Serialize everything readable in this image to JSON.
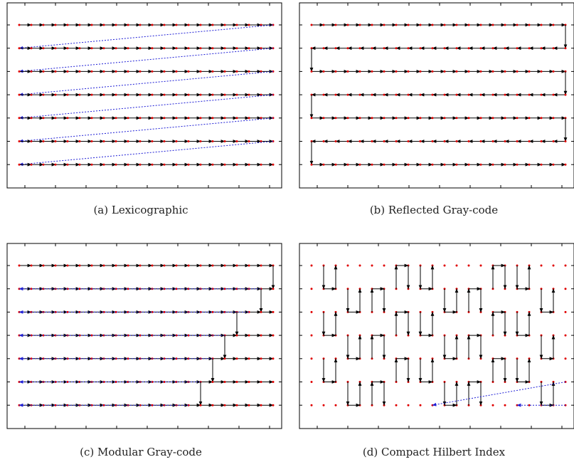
{
  "figure": {
    "colors": {
      "path": "#000000",
      "jump": "#1f1fd6",
      "point": "#e00000",
      "frame": "#000000"
    },
    "panels": [
      {
        "id": "a",
        "caption": "(a) Lexicographic",
        "ordering": "lexicographic"
      },
      {
        "id": "b",
        "caption": "(b) Reflected Gray-code",
        "ordering": "reflected-gray-code"
      },
      {
        "id": "c",
        "caption": "(c) Modular Gray-code",
        "ordering": "modular-gray-code"
      },
      {
        "id": "d",
        "caption": "(d) Compact Hilbert Index",
        "ordering": "compact-hilbert-index"
      }
    ]
  }
}
